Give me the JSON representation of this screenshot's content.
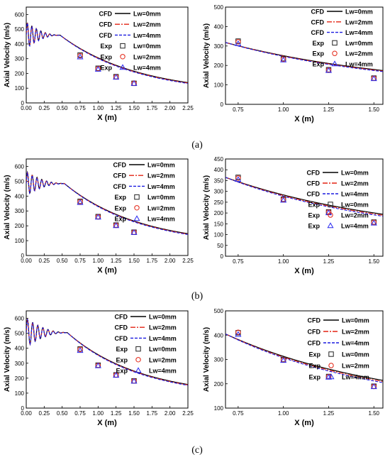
{
  "captions": [
    "(a)",
    "(b)",
    "(c)"
  ],
  "colors": {
    "cfd_0": "#000000",
    "cfd_2": "#e32212",
    "cfd_4": "#1a1ae0",
    "exp_0": "#222222",
    "exp_2": "#e32212",
    "exp_4": "#2c2cf0"
  },
  "chart_data": [
    {
      "type": "line",
      "panel": "a-left",
      "xlabel": "X (m)",
      "ylabel": "Axial Velocity (m/s)",
      "xlim": [
        0,
        2.25
      ],
      "ylim": [
        0,
        650
      ],
      "xticks": [
        "0.00",
        "0.25",
        "0.50",
        "0.75",
        "1.00",
        "1.25",
        "1.50",
        "1.75",
        "2.00",
        "2.25"
      ],
      "yticks": [
        "0",
        "100",
        "200",
        "300",
        "400",
        "500",
        "600"
      ],
      "legend_position": "top-right",
      "osc": {
        "plateau": 460,
        "end": 0.47,
        "amp": 90,
        "freq": 16
      },
      "decay": {
        "start": 0.47,
        "end": 2.25,
        "v_start": 460,
        "k": 0.92,
        "floor": 60
      },
      "series": [
        {
          "legend": "CFD",
          "name": "Lw=0mm",
          "kind": "line",
          "style": "solid",
          "offset": 0
        },
        {
          "legend": "CFD",
          "name": "Lw=2mm",
          "kind": "line",
          "style": "dashdot",
          "offset": -3
        },
        {
          "legend": "CFD",
          "name": "Lw=4mm",
          "kind": "line",
          "style": "dashed",
          "offset": -6
        },
        {
          "legend": "Exp",
          "name": "Lw=0mm",
          "kind": "marker",
          "marker": "square",
          "x": [
            0.75,
            1.0,
            1.25,
            1.5
          ],
          "y": [
            325,
            235,
            178,
            133
          ]
        },
        {
          "legend": "Exp",
          "name": "Lw=2mm",
          "kind": "marker",
          "marker": "circle",
          "x": [
            0.75,
            1.0,
            1.25,
            1.5
          ],
          "y": [
            320,
            232,
            176,
            133
          ]
        },
        {
          "legend": "Exp",
          "name": "Lw=4mm",
          "kind": "marker",
          "marker": "triangle",
          "x": [
            0.75,
            1.0,
            1.25,
            1.5
          ],
          "y": [
            312,
            228,
            174,
            132
          ]
        }
      ]
    },
    {
      "type": "line",
      "panel": "a-right",
      "xlabel": "X (m)",
      "ylabel": "Axial Velocity (m/s)",
      "xlim": [
        0.68,
        1.55
      ],
      "ylim": [
        0,
        500
      ],
      "xticks": [
        "0.75",
        "1.00",
        "1.25",
        "1.50"
      ],
      "yticks": [
        "0",
        "100",
        "200",
        "300",
        "400",
        "500"
      ],
      "legend_position": "top-right",
      "decay": {
        "start": 0.68,
        "end": 1.55,
        "v_start": 318,
        "k": 1.0,
        "floor": 70
      },
      "series": [
        {
          "legend": "CFD",
          "name": "Lw=0mm",
          "kind": "line",
          "style": "solid",
          "offset": 0
        },
        {
          "legend": "CFD",
          "name": "Lw=2mm",
          "kind": "line",
          "style": "dashdot",
          "offset": -3
        },
        {
          "legend": "CFD",
          "name": "Lw=4mm",
          "kind": "line",
          "style": "dashed",
          "offset": -6
        },
        {
          "legend": "Exp",
          "name": "Lw=0mm",
          "kind": "marker",
          "marker": "square",
          "x": [
            0.75,
            1.0,
            1.25,
            1.5
          ],
          "y": [
            325,
            235,
            178,
            135
          ]
        },
        {
          "legend": "Exp",
          "name": "Lw=2mm",
          "kind": "marker",
          "marker": "circle",
          "x": [
            0.75,
            1.0,
            1.25,
            1.5
          ],
          "y": [
            322,
            232,
            176,
            134
          ]
        },
        {
          "legend": "Exp",
          "name": "Lw=4mm",
          "kind": "marker",
          "marker": "triangle",
          "x": [
            0.75,
            1.0,
            1.25,
            1.5
          ],
          "y": [
            312,
            228,
            174,
            132
          ]
        }
      ]
    },
    {
      "type": "line",
      "panel": "b-left",
      "xlabel": "X (m)",
      "ylabel": "Axial Velocity (m/s)",
      "xlim": [
        0,
        2.25
      ],
      "ylim": [
        0,
        650
      ],
      "xticks": [
        "0.00",
        "0.25",
        "0.50",
        "0.75",
        "1.00",
        "1.25",
        "1.50",
        "1.75",
        "2.00",
        "2.25"
      ],
      "yticks": [
        "0",
        "100",
        "200",
        "300",
        "400",
        "500",
        "600"
      ],
      "legend_position": "top-right",
      "osc": {
        "plateau": 485,
        "end": 0.53,
        "amp": 80,
        "freq": 15
      },
      "decay": {
        "start": 0.53,
        "end": 2.25,
        "v_start": 485,
        "k": 0.95,
        "floor": 65
      },
      "series": [
        {
          "legend": "CFD",
          "name": "Lw=0mm",
          "kind": "line",
          "style": "solid",
          "offset": 0
        },
        {
          "legend": "CFD",
          "name": "Lw=2mm",
          "kind": "line",
          "style": "dashdot",
          "offset": -3
        },
        {
          "legend": "CFD",
          "name": "Lw=4mm",
          "kind": "line",
          "style": "dashed",
          "offset": -6
        },
        {
          "legend": "Exp",
          "name": "Lw=0mm",
          "kind": "marker",
          "marker": "square",
          "x": [
            0.75,
            1.0,
            1.25,
            1.5
          ],
          "y": [
            365,
            262,
            205,
            157
          ]
        },
        {
          "legend": "Exp",
          "name": "Lw=2mm",
          "kind": "marker",
          "marker": "circle",
          "x": [
            0.75,
            1.0,
            1.25,
            1.5
          ],
          "y": [
            362,
            260,
            203,
            156
          ]
        },
        {
          "legend": "Exp",
          "name": "Lw=4mm",
          "kind": "marker",
          "marker": "triangle",
          "x": [
            0.75,
            1.0,
            1.25,
            1.5
          ],
          "y": [
            357,
            258,
            201,
            155
          ]
        }
      ]
    },
    {
      "type": "line",
      "panel": "b-right",
      "xlabel": "X (m)",
      "ylabel": "Axial Velocity (m/s)",
      "xlim": [
        0.68,
        1.55
      ],
      "ylim": [
        0,
        450
      ],
      "xticks": [
        "0.75",
        "1.00",
        "1.25",
        "1.50"
      ],
      "yticks": [
        "0",
        "50",
        "100",
        "150",
        "200",
        "250",
        "300",
        "350",
        "400",
        "450"
      ],
      "legend_position": "top-right",
      "decay": {
        "start": 0.68,
        "end": 1.55,
        "v_start": 365,
        "k": 1.05,
        "floor": 80
      },
      "series": [
        {
          "legend": "CFD",
          "name": "Lw=0mm",
          "kind": "line",
          "style": "solid",
          "offset": 0
        },
        {
          "legend": "CFD",
          "name": "Lw=2mm",
          "kind": "line",
          "style": "dashdot",
          "offset": -5
        },
        {
          "legend": "CFD",
          "name": "Lw=4mm",
          "kind": "line",
          "style": "dashed",
          "offset": -10
        },
        {
          "legend": "Exp",
          "name": "Lw=0mm",
          "kind": "marker",
          "marker": "square",
          "x": [
            0.75,
            1.0,
            1.25,
            1.5
          ],
          "y": [
            365,
            264,
            205,
            158
          ]
        },
        {
          "legend": "Exp",
          "name": "Lw=2mm",
          "kind": "marker",
          "marker": "circle",
          "x": [
            0.75,
            1.0,
            1.25,
            1.5
          ],
          "y": [
            362,
            262,
            204,
            157
          ]
        },
        {
          "legend": "Exp",
          "name": "Lw=4mm",
          "kind": "marker",
          "marker": "triangle",
          "x": [
            0.75,
            1.0,
            1.25,
            1.5
          ],
          "y": [
            355,
            259,
            201,
            153
          ]
        }
      ]
    },
    {
      "type": "line",
      "panel": "c-left",
      "xlabel": "X (m)",
      "ylabel": "Axial Velocity (m/s)",
      "xlim": [
        0,
        2.25
      ],
      "ylim": [
        0,
        650
      ],
      "xticks": [
        "0.00",
        "0.25",
        "0.50",
        "0.75",
        "1.00",
        "1.25",
        "1.50",
        "1.75",
        "2.00",
        "2.25"
      ],
      "yticks": [
        "0",
        "100",
        "200",
        "300",
        "400",
        "500",
        "600"
      ],
      "legend_position": "top-right",
      "osc": {
        "plateau": 505,
        "end": 0.57,
        "amp": 95,
        "freq": 14
      },
      "decay": {
        "start": 0.57,
        "end": 2.25,
        "v_start": 505,
        "k": 0.98,
        "floor": 75
      },
      "series": [
        {
          "legend": "CFD",
          "name": "Lw=0mm",
          "kind": "line",
          "style": "solid",
          "offset": 0
        },
        {
          "legend": "CFD",
          "name": "Lw=2mm",
          "kind": "line",
          "style": "dashdot",
          "offset": -3
        },
        {
          "legend": "CFD",
          "name": "Lw=4mm",
          "kind": "line",
          "style": "dashed",
          "offset": -6
        },
        {
          "legend": "Exp",
          "name": "Lw=0mm",
          "kind": "marker",
          "marker": "square",
          "x": [
            0.75,
            1.0,
            1.25,
            1.5
          ],
          "y": [
            395,
            287,
            222,
            182
          ]
        },
        {
          "legend": "Exp",
          "name": "Lw=2mm",
          "kind": "marker",
          "marker": "circle",
          "x": [
            0.75,
            1.0,
            1.25,
            1.5
          ],
          "y": [
            392,
            285,
            221,
            181
          ]
        },
        {
          "legend": "Exp",
          "name": "Lw=4mm",
          "kind": "marker",
          "marker": "triangle",
          "x": [
            0.75,
            1.0,
            1.25,
            1.5
          ],
          "y": [
            385,
            283,
            219,
            180
          ]
        }
      ]
    },
    {
      "type": "line",
      "panel": "c-right",
      "xlabel": "X (m)",
      "ylabel": "Axial Velocity (m/s)",
      "xlim": [
        0.68,
        1.55
      ],
      "ylim": [
        100,
        500
      ],
      "xticks": [
        "0.75",
        "1.00",
        "1.25",
        "1.50"
      ],
      "yticks": [
        "100",
        "200",
        "300",
        "400",
        "500"
      ],
      "legend_position": "top-right",
      "decay": {
        "start": 0.68,
        "end": 1.55,
        "v_start": 405,
        "k": 1.1,
        "floor": 95
      },
      "series": [
        {
          "legend": "CFD",
          "name": "Lw=0mm",
          "kind": "line",
          "style": "solid",
          "offset": 0
        },
        {
          "legend": "CFD",
          "name": "Lw=2mm",
          "kind": "line",
          "style": "dashdot",
          "offset": -5
        },
        {
          "legend": "CFD",
          "name": "Lw=4mm",
          "kind": "line",
          "style": "dashed",
          "offset": -10
        },
        {
          "legend": "Exp",
          "name": "Lw=0mm",
          "kind": "marker",
          "marker": "square",
          "x": [
            0.75,
            1.0,
            1.25,
            1.5
          ],
          "y": [
            410,
            300,
            230,
            190
          ]
        },
        {
          "legend": "Exp",
          "name": "Lw=2mm",
          "kind": "marker",
          "marker": "circle",
          "x": [
            0.75,
            1.0,
            1.25,
            1.5
          ],
          "y": [
            412,
            298,
            229,
            189
          ]
        },
        {
          "legend": "Exp",
          "name": "Lw=4mm",
          "kind": "marker",
          "marker": "triangle",
          "x": [
            0.75,
            1.0,
            1.25,
            1.5
          ],
          "y": [
            403,
            296,
            227,
            188
          ]
        }
      ]
    }
  ]
}
